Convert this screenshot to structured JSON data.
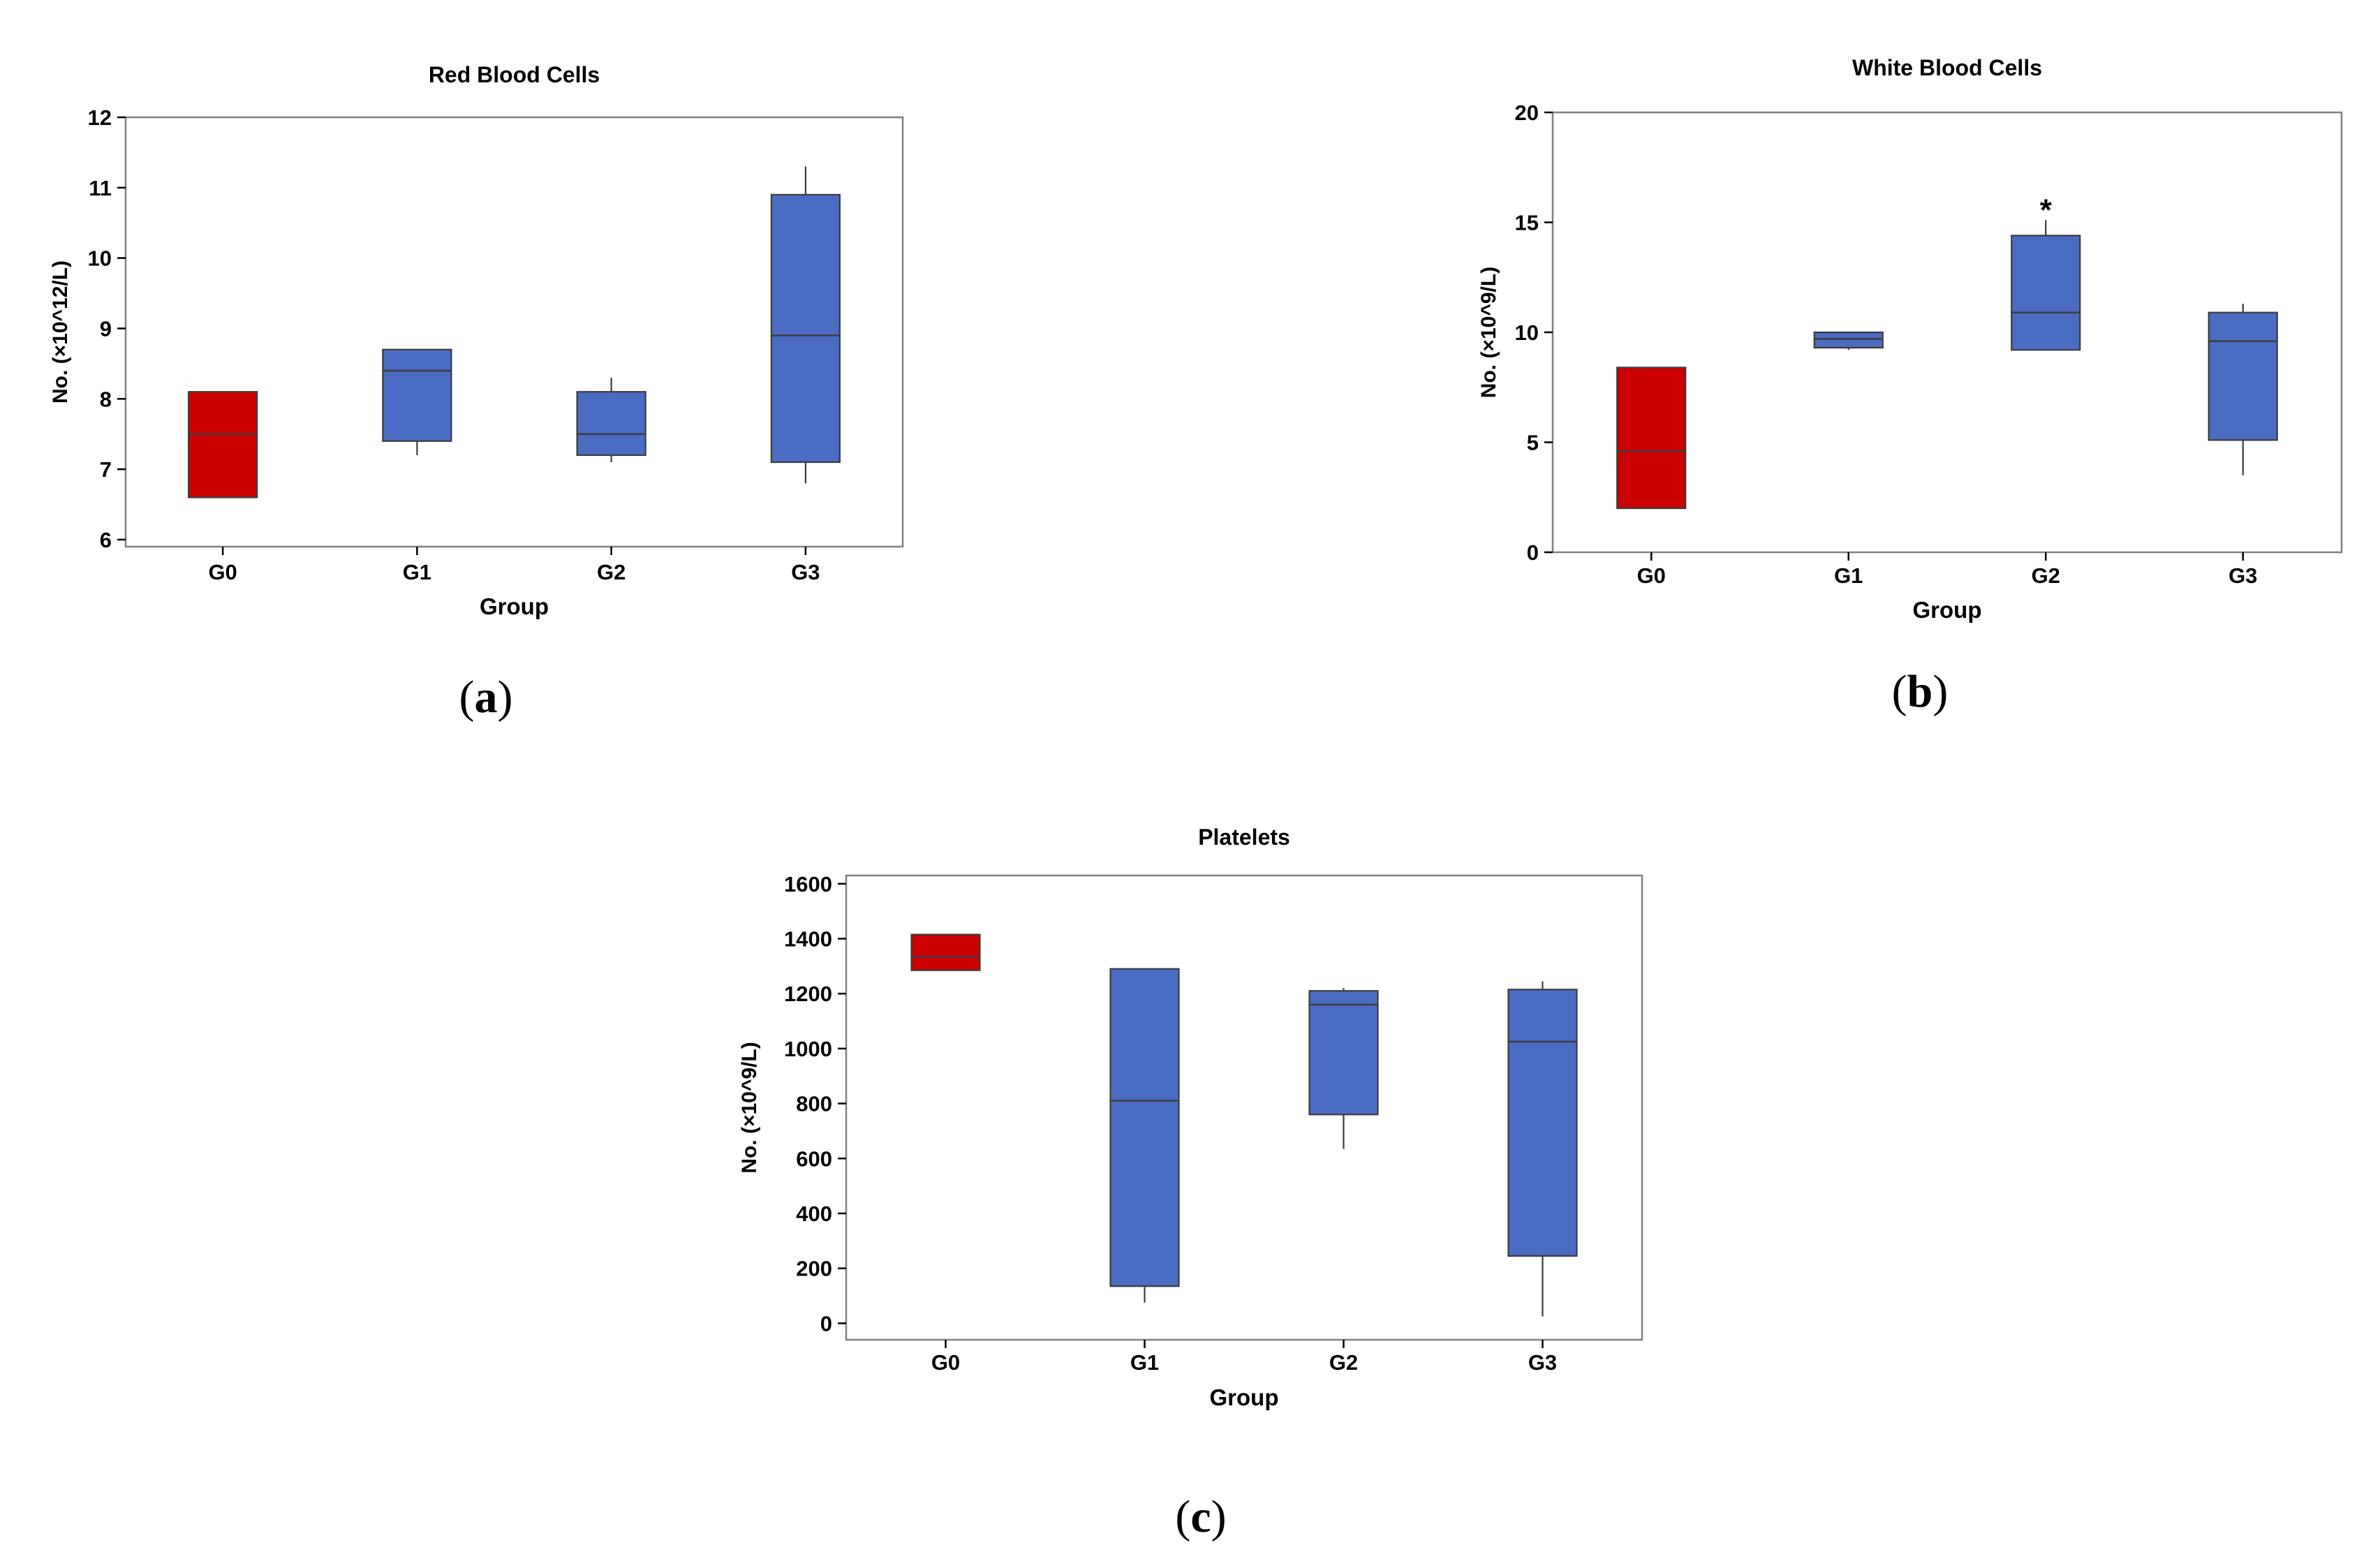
{
  "colors": {
    "control_fill": "#CC0000",
    "treatment_fill": "#4A6CC3",
    "box_stroke": "#3c3c3c",
    "frame_stroke": "#808080",
    "median_stroke": "#3c3c3c"
  },
  "chart_data": [
    {
      "type": "boxplot",
      "panel_label": "(a)",
      "panel_letter": "a",
      "title": "Red Blood Cells",
      "xlabel": "Group",
      "ylabel": "No. (×10^12/L)",
      "ylim": [
        5.9,
        12
      ],
      "yticks": [
        6,
        7,
        8,
        9,
        10,
        11,
        12
      ],
      "categories": [
        "G0",
        "G1",
        "G2",
        "G3"
      ],
      "boxes": [
        {
          "group": "G0",
          "min": 6.6,
          "q1": 6.6,
          "median": 7.5,
          "q3": 8.1,
          "max": 8.1,
          "fill": "control"
        },
        {
          "group": "G1",
          "min": 7.2,
          "q1": 7.4,
          "median": 8.4,
          "q3": 8.7,
          "max": 8.7,
          "fill": "treatment"
        },
        {
          "group": "G2",
          "min": 7.1,
          "q1": 7.2,
          "median": 7.5,
          "q3": 8.1,
          "max": 8.3,
          "fill": "treatment"
        },
        {
          "group": "G3",
          "min": 6.8,
          "q1": 7.1,
          "median": 8.9,
          "q3": 10.9,
          "max": 11.3,
          "fill": "treatment"
        }
      ],
      "annotations": []
    },
    {
      "type": "boxplot",
      "panel_label": "(b)",
      "panel_letter": "b",
      "title": "White Blood Cells",
      "xlabel": "Group",
      "ylabel": "No. (×10^9/L)",
      "ylim": [
        0,
        20
      ],
      "yticks": [
        0,
        5,
        10,
        15,
        20
      ],
      "categories": [
        "G0",
        "G1",
        "G2",
        "G3"
      ],
      "boxes": [
        {
          "group": "G0",
          "min": 2.0,
          "q1": 2.0,
          "median": 4.6,
          "q3": 8.4,
          "max": 8.4,
          "fill": "control"
        },
        {
          "group": "G1",
          "min": 9.2,
          "q1": 9.3,
          "median": 9.7,
          "q3": 10.0,
          "max": 10.0,
          "fill": "treatment"
        },
        {
          "group": "G2",
          "min": 9.2,
          "q1": 9.2,
          "median": 10.9,
          "q3": 14.4,
          "max": 15.1,
          "fill": "treatment"
        },
        {
          "group": "G3",
          "min": 3.5,
          "q1": 5.1,
          "median": 9.6,
          "q3": 10.9,
          "max": 11.3,
          "fill": "treatment"
        }
      ],
      "annotations": [
        {
          "group": "G2",
          "text": "*",
          "y": 15.8
        }
      ]
    },
    {
      "type": "boxplot",
      "panel_label": "(c)",
      "panel_letter": "c",
      "title": "Platelets",
      "xlabel": "Group",
      "ylabel": "No. (×10^9/L)",
      "ylim": [
        -60,
        1630
      ],
      "yticks": [
        0,
        200,
        400,
        600,
        800,
        1000,
        1200,
        1400,
        1600
      ],
      "categories": [
        "G0",
        "G1",
        "G2",
        "G3"
      ],
      "boxes": [
        {
          "group": "G0",
          "min": 1285,
          "q1": 1285,
          "median": 1335,
          "q3": 1415,
          "max": 1415,
          "fill": "control"
        },
        {
          "group": "G1",
          "min": 75,
          "q1": 135,
          "median": 810,
          "q3": 1290,
          "max": 1290,
          "fill": "treatment"
        },
        {
          "group": "G2",
          "min": 635,
          "q1": 760,
          "median": 1160,
          "q3": 1210,
          "max": 1220,
          "fill": "treatment"
        },
        {
          "group": "G3",
          "min": 25,
          "q1": 245,
          "median": 1025,
          "q3": 1215,
          "max": 1245,
          "fill": "treatment"
        }
      ],
      "annotations": []
    }
  ]
}
